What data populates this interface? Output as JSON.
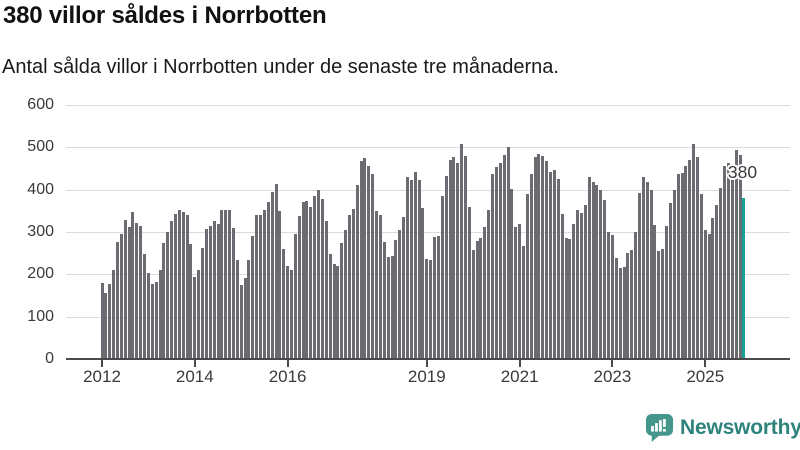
{
  "header": {
    "title": "380 villor såldes i Norrbotten",
    "subtitle": "Antal sålda villor i Norrbotten under de senaste tre månaderna."
  },
  "chart_data": {
    "type": "bar",
    "title": "380 villor såldes i Norrbotten",
    "xlabel": "",
    "ylabel": "",
    "ylim": [
      0,
      600
    ],
    "y_ticks": [
      0,
      100,
      200,
      300,
      400,
      500,
      600
    ],
    "grid": "horizontal",
    "x_unit": "month",
    "x_start": "2012-01",
    "x_end": "2025-11",
    "x_tick_labels": [
      {
        "label": "2012",
        "month_index": 0
      },
      {
        "label": "2014",
        "month_index": 24
      },
      {
        "label": "2016",
        "month_index": 48
      },
      {
        "label": "2019",
        "month_index": 84
      },
      {
        "label": "2021",
        "month_index": 108
      },
      {
        "label": "2023",
        "month_index": 132
      },
      {
        "label": "2025",
        "month_index": 156
      }
    ],
    "values": [
      180,
      155,
      178,
      210,
      276,
      296,
      329,
      312,
      348,
      321,
      315,
      247,
      202,
      177,
      182,
      211,
      275,
      300,
      327,
      343,
      352,
      347,
      341,
      272,
      194,
      211,
      263,
      308,
      313,
      327,
      318,
      353,
      353,
      351,
      310,
      235,
      174,
      192,
      233,
      290,
      339,
      341,
      351,
      370,
      394,
      413,
      350,
      261,
      219,
      210,
      296,
      337,
      372,
      374,
      360,
      386,
      399,
      378,
      327,
      247,
      225,
      219,
      275,
      304,
      341,
      355,
      412,
      468,
      474,
      456,
      437,
      350,
      339,
      276,
      240,
      243,
      280,
      304,
      335,
      429,
      423,
      441,
      423,
      357,
      237,
      233,
      288,
      290,
      386,
      433,
      470,
      476,
      464,
      507,
      480,
      358,
      257,
      278,
      287,
      312,
      353,
      437,
      454,
      464,
      482,
      501,
      402,
      312,
      319,
      268,
      390,
      438,
      476,
      484,
      480,
      467,
      441,
      446,
      425,
      343,
      285,
      283,
      319,
      352,
      344,
      364,
      429,
      419,
      411,
      399,
      376,
      301,
      293,
      238,
      214,
      218,
      250,
      257,
      301,
      391,
      429,
      417,
      399,
      316,
      255,
      260,
      314,
      368,
      400,
      437,
      440,
      456,
      470,
      507,
      478,
      390,
      304,
      296,
      334,
      363,
      404,
      456,
      462,
      451,
      494,
      483,
      380
    ],
    "highlight_last": {
      "value": 380,
      "label": "380"
    },
    "colors": {
      "bar": "#6b6b71",
      "highlight": "#16a098",
      "grid": "#dcdcdc",
      "axis": "#4a4a4a",
      "tick_label": "#3a3a3a"
    }
  },
  "branding": {
    "logo_text": "Newsworthy",
    "icon": "bar-chart-speech-bubble",
    "color_icon": "#45968b",
    "color_text": "#2e837d"
  }
}
